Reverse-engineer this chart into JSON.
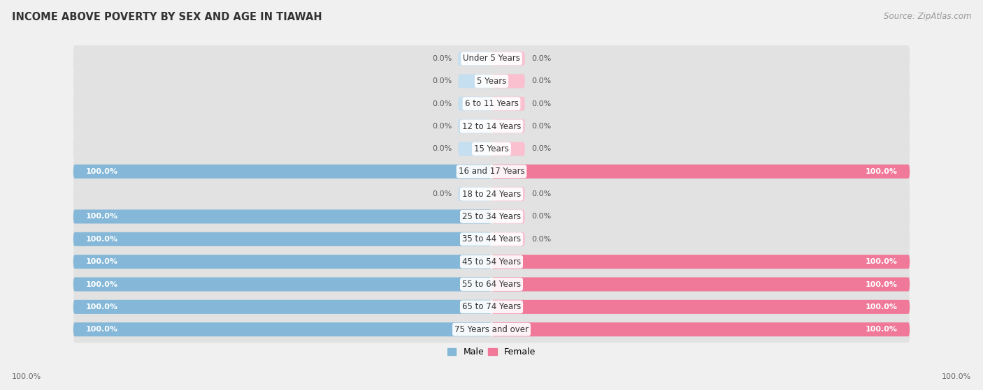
{
  "title": "INCOME ABOVE POVERTY BY SEX AND AGE IN TIAWAH",
  "source": "Source: ZipAtlas.com",
  "categories": [
    "Under 5 Years",
    "5 Years",
    "6 to 11 Years",
    "12 to 14 Years",
    "15 Years",
    "16 and 17 Years",
    "18 to 24 Years",
    "25 to 34 Years",
    "35 to 44 Years",
    "45 to 54 Years",
    "55 to 64 Years",
    "65 to 74 Years",
    "75 Years and over"
  ],
  "male": [
    0.0,
    0.0,
    0.0,
    0.0,
    0.0,
    100.0,
    0.0,
    100.0,
    100.0,
    100.0,
    100.0,
    100.0,
    100.0
  ],
  "female": [
    0.0,
    0.0,
    0.0,
    0.0,
    0.0,
    100.0,
    0.0,
    0.0,
    0.0,
    100.0,
    100.0,
    100.0,
    100.0
  ],
  "male_color": "#85b8d8",
  "female_color": "#f07898",
  "male_stub_color": "#c5dff0",
  "female_stub_color": "#fac0d0",
  "bg_color": "#f0f0f0",
  "row_bg_color": "#e2e2e2",
  "title_fontsize": 10.5,
  "source_fontsize": 8.5,
  "label_fontsize": 8.5,
  "value_fontsize": 8,
  "xlim": 100,
  "stub_size": 8.0
}
